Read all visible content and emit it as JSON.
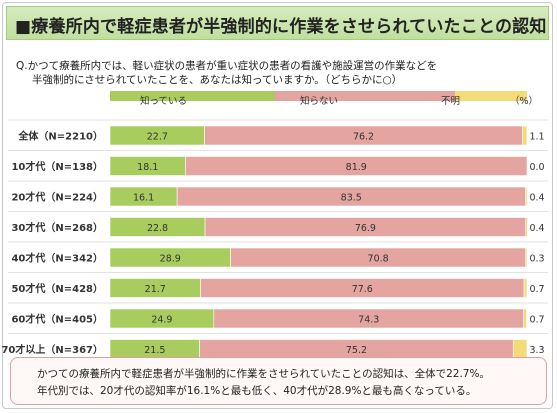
{
  "header": {
    "title": "■療養所内で軽症患者が半強制的に作業をさせられていたことの認知"
  },
  "question": {
    "line1": "Q.かつて療養所内では、軽い症状の患者が重い症状の患者の看護や施設運営の作業などを",
    "line2": "半強制的にさせられていたことを、あなたは知っていますか。（どちらかに○）"
  },
  "chart_data": {
    "type": "bar",
    "orientation": "horizontal-stacked-100",
    "unit_label": "（%）",
    "categories": [
      "全体（N=2210）",
      "10才代（N=138）",
      "20才代（N=224）",
      "30才代（N=268）",
      "40才代（N=342）",
      "50才代（N=428）",
      "60才代（N=405）",
      "70才以上（N=367）"
    ],
    "series": [
      {
        "name": "知っている",
        "color": "#a9cc5f",
        "values": [
          22.7,
          18.1,
          16.1,
          22.8,
          28.9,
          21.7,
          24.9,
          21.5
        ]
      },
      {
        "name": "知らない",
        "color": "#e4a49f",
        "values": [
          76.2,
          81.9,
          83.5,
          76.9,
          70.8,
          77.6,
          74.3,
          75.2
        ]
      },
      {
        "name": "不明",
        "color": "#f3db7a",
        "values": [
          1.1,
          0.0,
          0.4,
          0.4,
          0.3,
          0.7,
          0.7,
          3.3
        ]
      }
    ],
    "xlim": [
      0,
      100
    ]
  },
  "note": {
    "line1": "かつての療養所内で軽症患者が半強制的に作業をさせられていたことの認知は、全体で22.7%。",
    "line2": "年代別では、20才代の認知率が16.1%と最も低く、40才代が28.9%と最も高くなっている。"
  }
}
